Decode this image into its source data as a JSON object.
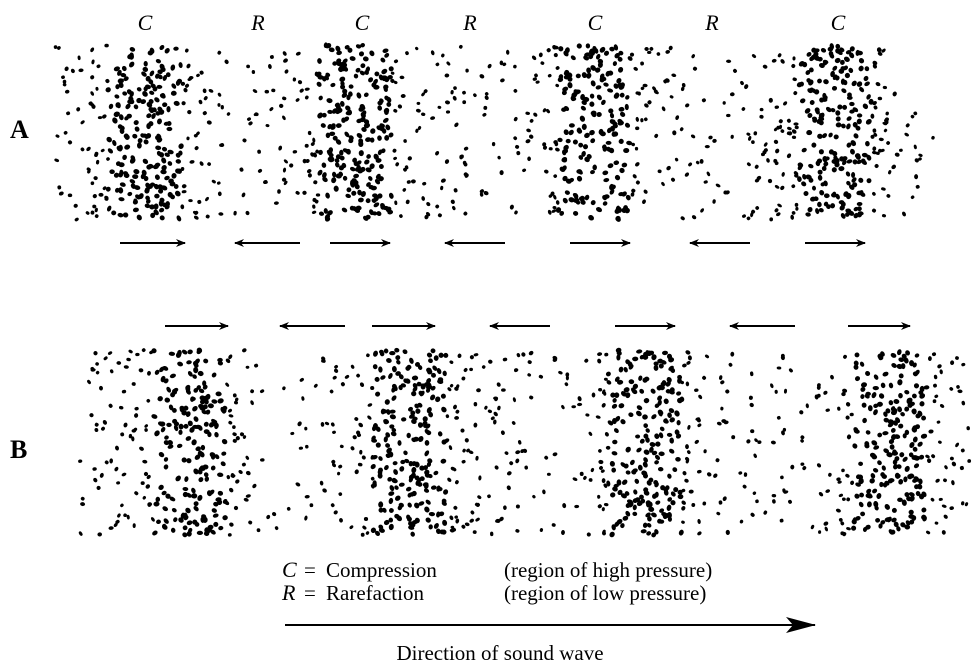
{
  "row_a": {
    "label": "A",
    "region_labels": [
      "C",
      "R",
      "C",
      "R",
      "C",
      "R",
      "C"
    ]
  },
  "row_b": {
    "label": "B"
  },
  "legend": [
    {
      "symbol": "C",
      "separator": "=",
      "term": "Compression",
      "description": "(region of high pressure)"
    },
    {
      "symbol": "R",
      "separator": "=",
      "term": "Rarefaction",
      "description": "(region of low pressure)"
    }
  ],
  "direction_label": "Direction of sound wave"
}
